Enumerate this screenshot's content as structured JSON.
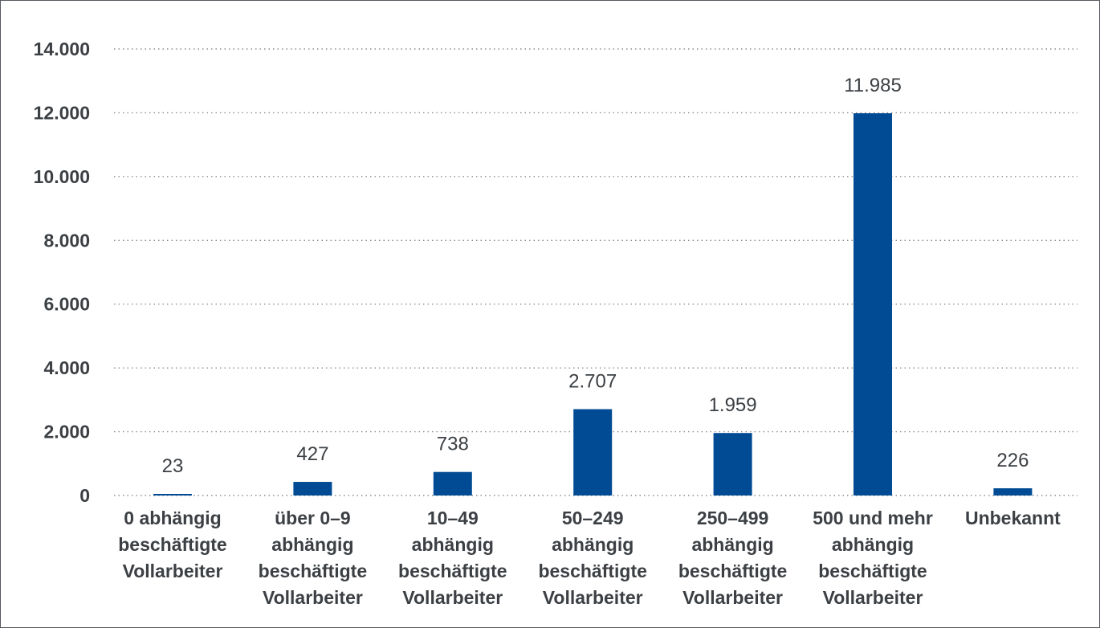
{
  "chart_data": {
    "type": "bar",
    "categories": [
      "0 abhängig beschäftigte Vollarbeiter",
      "über 0–9 abhängig beschäftigte Vollarbeiter",
      "10–49 abhängig beschäftigte Vollarbeiter",
      "50–249 abhängig beschäftigte Vollarbeiter",
      "250–499 abhängig beschäftigte Vollarbeiter",
      "500 und mehr abhängig beschäftigte Vollarbeiter",
      "Unbekannt"
    ],
    "category_lines": [
      [
        "0 abhängig",
        "beschäftigte",
        "Vollarbeiter"
      ],
      [
        "über 0–9",
        "abhängig",
        "beschäftigte",
        "Vollarbeiter"
      ],
      [
        "10–49",
        "abhängig",
        "beschäftigte",
        "Vollarbeiter"
      ],
      [
        "50–249",
        "abhängig",
        "beschäftigte",
        "Vollarbeiter"
      ],
      [
        "250–499",
        "abhängig",
        "beschäftigte",
        "Vollarbeiter"
      ],
      [
        "500 und mehr",
        "abhängig",
        "beschäftigte",
        "Vollarbeiter"
      ],
      [
        "Unbekannt"
      ]
    ],
    "values": [
      23,
      427,
      738,
      2707,
      1959,
      11985,
      226
    ],
    "value_labels": [
      "23",
      "427",
      "738",
      "2.707",
      "1.959",
      "11.985",
      "226"
    ],
    "ylim": [
      0,
      14000
    ],
    "y_ticks": [
      0,
      2000,
      4000,
      6000,
      8000,
      10000,
      12000,
      14000
    ],
    "y_tick_labels": [
      "0",
      "2.000",
      "4.000",
      "6.000",
      "8.000",
      "10.000",
      "12.000",
      "14.000"
    ],
    "title": "",
    "xlabel": "",
    "ylabel": "",
    "grid": "horizontal dotted",
    "bar_color": "#004b93"
  }
}
